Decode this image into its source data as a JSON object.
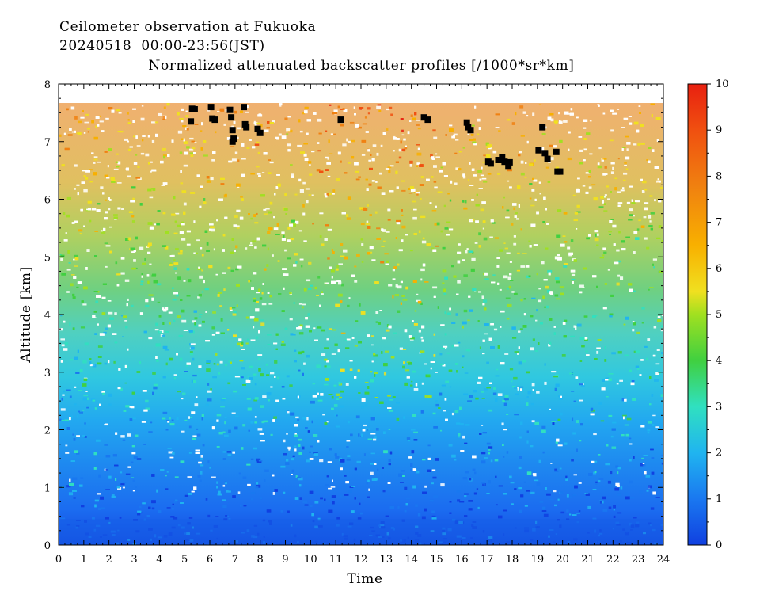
{
  "chart_data": {
    "type": "heatmap",
    "title_line1": "Ceilometer observation at Fukuoka",
    "title_line2": "20240518  00:00-23:56(JST)",
    "subtitle": "Normalized attenuated backscatter profiles [/1000*sr*km]",
    "xlabel": "Time",
    "ylabel": "Altitude [km]",
    "xlim": [
      0,
      24
    ],
    "ylim": [
      0,
      8
    ],
    "x_ticks": [
      "0",
      "1",
      "2",
      "3",
      "4",
      "5",
      "6",
      "7",
      "8",
      "9",
      "10",
      "11",
      "12",
      "13",
      "14",
      "15",
      "16",
      "17",
      "18",
      "19",
      "20",
      "21",
      "22",
      "23",
      "24"
    ],
    "y_ticks": [
      "0",
      "1",
      "2",
      "3",
      "4",
      "5",
      "6",
      "7",
      "8"
    ],
    "colorbar": {
      "range": [
        0,
        10
      ],
      "ticks": [
        "0",
        "1",
        "2",
        "3",
        "4",
        "5",
        "6",
        "7",
        "8",
        "9",
        "10"
      ],
      "colors": [
        "#1040e0",
        "#1a78f0",
        "#20b4f0",
        "#30e0c0",
        "#40d040",
        "#a0e020",
        "#f0e020",
        "#f8b000",
        "#f08010",
        "#f05010",
        "#e82010"
      ]
    },
    "data_top_km": 7.67,
    "black_markers": [
      {
        "t": 5.3,
        "alt": 7.57
      },
      {
        "t": 5.4,
        "alt": 7.56
      },
      {
        "t": 5.25,
        "alt": 7.35
      },
      {
        "t": 6.05,
        "alt": 7.6
      },
      {
        "t": 6.1,
        "alt": 7.4
      },
      {
        "t": 6.2,
        "alt": 7.38
      },
      {
        "t": 6.8,
        "alt": 7.55
      },
      {
        "t": 6.85,
        "alt": 7.42
      },
      {
        "t": 6.9,
        "alt": 7.2
      },
      {
        "t": 6.95,
        "alt": 7.05
      },
      {
        "t": 6.9,
        "alt": 7.0
      },
      {
        "t": 7.35,
        "alt": 7.6
      },
      {
        "t": 7.4,
        "alt": 7.3
      },
      {
        "t": 7.45,
        "alt": 7.25
      },
      {
        "t": 7.9,
        "alt": 7.22
      },
      {
        "t": 8.0,
        "alt": 7.15
      },
      {
        "t": 11.2,
        "alt": 7.38
      },
      {
        "t": 14.5,
        "alt": 7.42
      },
      {
        "t": 14.65,
        "alt": 7.38
      },
      {
        "t": 16.2,
        "alt": 7.33
      },
      {
        "t": 16.25,
        "alt": 7.25
      },
      {
        "t": 16.35,
        "alt": 7.2
      },
      {
        "t": 17.05,
        "alt": 6.65
      },
      {
        "t": 17.15,
        "alt": 6.62
      },
      {
        "t": 17.45,
        "alt": 6.68
      },
      {
        "t": 17.6,
        "alt": 6.73
      },
      {
        "t": 17.7,
        "alt": 6.65
      },
      {
        "t": 17.85,
        "alt": 6.58
      },
      {
        "t": 17.9,
        "alt": 6.64
      },
      {
        "t": 19.05,
        "alt": 6.85
      },
      {
        "t": 19.2,
        "alt": 7.25
      },
      {
        "t": 19.3,
        "alt": 6.8
      },
      {
        "t": 19.4,
        "alt": 6.7
      },
      {
        "t": 19.75,
        "alt": 6.82
      },
      {
        "t": 19.8,
        "alt": 6.48
      },
      {
        "t": 19.9,
        "alt": 6.48
      }
    ]
  }
}
